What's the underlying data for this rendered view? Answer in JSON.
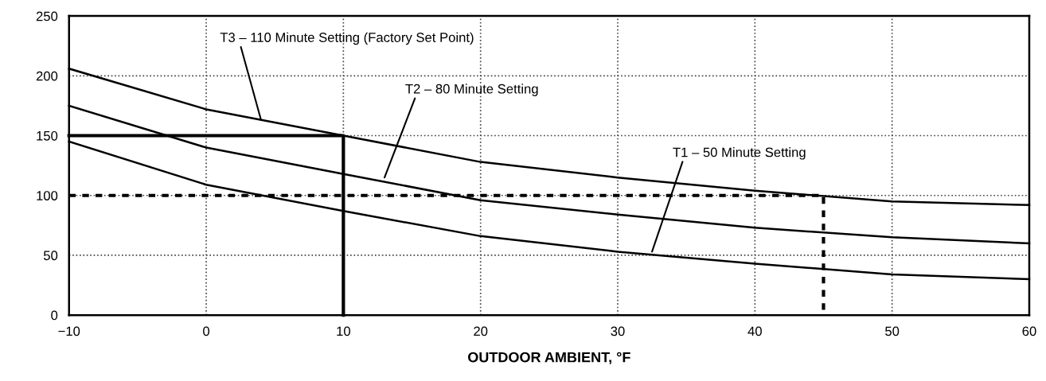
{
  "chart_data": {
    "type": "line",
    "xlabel": "OUTDOOR AMBIENT, °F",
    "x": [
      -10,
      0,
      10,
      20,
      30,
      40,
      50,
      60
    ],
    "series": [
      {
        "color": "#000000",
        "values": [
          206,
          172,
          150,
          128,
          115,
          104,
          95,
          92
        ]
      },
      {
        "color": "#000000",
        "values": [
          175,
          140,
          118,
          96,
          84,
          73,
          65,
          60
        ]
      },
      {
        "color": "#000000",
        "values": [
          145,
          109,
          87,
          66,
          53,
          43,
          34,
          30
        ]
      },
      {
        "color": "#000000",
        "x": [
          -10,
          10,
          10
        ],
        "values": [
          150,
          150,
          0
        ],
        "line_style": "solid"
      },
      {
        "color": "#000000",
        "x": [
          -10,
          45,
          45
        ],
        "values": [
          100,
          100,
          0
        ],
        "line_style": "dashed"
      }
    ],
    "annotations": [
      {
        "text": "T3 – 110 Minute Setting (Factory Set Point)",
        "x": 4,
        "y": 163
      },
      {
        "text": "T2 – 80 Minute Setting",
        "x": 13,
        "y": 115
      },
      {
        "text": "T1 – 50 Minute Setting",
        "x": 32.5,
        "y": 53
      }
    ],
    "xlim": [
      -10,
      60
    ],
    "xticks": [
      {
        "value": -10,
        "label": "−10"
      },
      0,
      10,
      20,
      30,
      40,
      50,
      60
    ],
    "ylim": [
      0,
      250
    ],
    "yticks": [
      0,
      50,
      100,
      150,
      200,
      250
    ],
    "grid": true,
    "marker": "none",
    "line_style": "solid"
  }
}
